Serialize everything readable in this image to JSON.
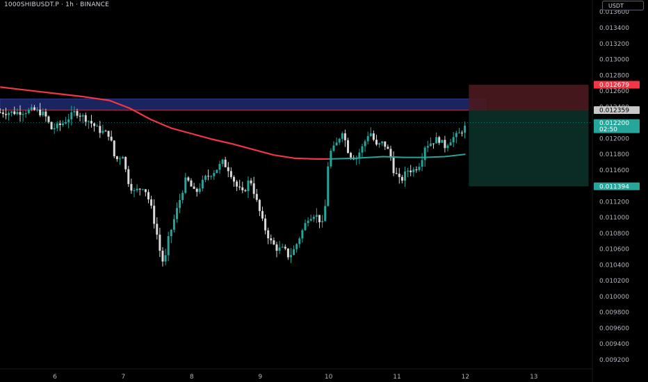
{
  "header": {
    "symbol": "1000SHIBUSDT.P · 1h · BINANCE",
    "currency": "USDT"
  },
  "colors": {
    "background": "#000000",
    "up": "#26a69a",
    "down": "#d9d9d9",
    "ma_line": "#f23645",
    "ma_line_recent": "#26a69a",
    "zone": "#1e2a6e",
    "stop_box": "#4a1a1f",
    "target_box": "#0b2e26",
    "axis_text": "#b2b5be"
  },
  "chart_data": {
    "type": "candlestick",
    "title": "",
    "xlabel": "",
    "ylabel": "",
    "ylim": [
      0.0091,
      0.0139
    ],
    "x_range": [
      5.2,
      14.4
    ],
    "x_ticks": [
      6,
      7,
      8,
      9,
      10,
      11,
      12,
      13
    ],
    "x_tick_labels": [
      "6",
      "7",
      "8",
      "9",
      "10",
      "11",
      "12",
      "13"
    ],
    "y_ticks": [
      0.0136,
      0.0134,
      0.0132,
      0.013,
      0.0128,
      0.0126,
      0.0124,
      0.0122,
      0.012,
      0.0118,
      0.0116,
      0.0114,
      0.0112,
      0.011,
      0.0108,
      0.0106,
      0.0104,
      0.0102,
      0.01,
      0.0098,
      0.0096,
      0.0094,
      0.0092
    ],
    "y_tick_labels": [
      "0.013600",
      "0.013400",
      "0.013200",
      "0.013000",
      "0.012800",
      "0.012600",
      "0.012400",
      "0.012200",
      "0.012000",
      "0.011800",
      "0.011600",
      "0.011400",
      "0.011200",
      "0.011000",
      "0.010800",
      "0.010600",
      "0.010400",
      "0.010200",
      "0.010000",
      "0.009800",
      "0.009600",
      "0.009400",
      "0.009200"
    ],
    "price_path": [
      [
        5.2,
        0.01233
      ],
      [
        5.45,
        0.01233
      ],
      [
        5.7,
        0.01236
      ],
      [
        5.85,
        0.0123
      ],
      [
        5.95,
        0.01212
      ],
      [
        6.1,
        0.01218
      ],
      [
        6.3,
        0.01234
      ],
      [
        6.5,
        0.01222
      ],
      [
        6.65,
        0.0121
      ],
      [
        6.8,
        0.01205
      ],
      [
        6.88,
        0.01172
      ],
      [
        7.0,
        0.0118
      ],
      [
        7.05,
        0.0115
      ],
      [
        7.15,
        0.01132
      ],
      [
        7.3,
        0.0114
      ],
      [
        7.4,
        0.01115
      ],
      [
        7.5,
        0.01075
      ],
      [
        7.55,
        0.0105
      ],
      [
        7.6,
        0.0104
      ],
      [
        7.65,
        0.0107
      ],
      [
        7.75,
        0.011
      ],
      [
        7.85,
        0.0113
      ],
      [
        7.92,
        0.0115
      ],
      [
        8.05,
        0.0113
      ],
      [
        8.2,
        0.0115
      ],
      [
        8.35,
        0.0116
      ],
      [
        8.45,
        0.0117
      ],
      [
        8.55,
        0.0116
      ],
      [
        8.65,
        0.0114
      ],
      [
        8.75,
        0.0113
      ],
      [
        8.85,
        0.0115
      ],
      [
        8.95,
        0.0112
      ],
      [
        9.05,
        0.0109
      ],
      [
        9.15,
        0.0107
      ],
      [
        9.25,
        0.0106
      ],
      [
        9.35,
        0.0106
      ],
      [
        9.42,
        0.0105
      ],
      [
        9.5,
        0.0106
      ],
      [
        9.6,
        0.0108
      ],
      [
        9.7,
        0.011
      ],
      [
        9.8,
        0.01105
      ],
      [
        9.92,
        0.0109
      ],
      [
        9.97,
        0.0113
      ],
      [
        10.0,
        0.0118
      ],
      [
        10.1,
        0.0119
      ],
      [
        10.2,
        0.0121
      ],
      [
        10.3,
        0.0118
      ],
      [
        10.4,
        0.01175
      ],
      [
        10.5,
        0.0119
      ],
      [
        10.6,
        0.0121
      ],
      [
        10.7,
        0.0119
      ],
      [
        10.8,
        0.01195
      ],
      [
        10.9,
        0.0118
      ],
      [
        10.95,
        0.0116
      ],
      [
        11.05,
        0.01145
      ],
      [
        11.15,
        0.0116
      ],
      [
        11.25,
        0.0116
      ],
      [
        11.35,
        0.0117
      ],
      [
        11.4,
        0.0119
      ],
      [
        11.5,
        0.01195
      ],
      [
        11.6,
        0.012
      ],
      [
        11.7,
        0.0119
      ],
      [
        11.8,
        0.012
      ],
      [
        11.9,
        0.01205
      ],
      [
        12.0,
        0.01215
      ],
      [
        12.03,
        0.0122
      ]
    ],
    "ma": [
      [
        5.2,
        0.01265
      ],
      [
        5.5,
        0.01262
      ],
      [
        6.0,
        0.01257
      ],
      [
        6.4,
        0.01253
      ],
      [
        6.8,
        0.01248
      ],
      [
        7.1,
        0.01238
      ],
      [
        7.4,
        0.01224
      ],
      [
        7.7,
        0.01213
      ],
      [
        8.0,
        0.01206
      ],
      [
        8.3,
        0.01199
      ],
      [
        8.6,
        0.01193
      ],
      [
        8.9,
        0.01186
      ],
      [
        9.2,
        0.01179
      ],
      [
        9.5,
        0.01175
      ],
      [
        9.8,
        0.01174
      ],
      [
        10.0,
        0.01174
      ]
    ],
    "ma_recent": [
      [
        10.0,
        0.01174
      ],
      [
        10.4,
        0.01175
      ],
      [
        10.8,
        0.01177
      ],
      [
        11.1,
        0.01176
      ],
      [
        11.4,
        0.01176
      ],
      [
        11.7,
        0.01177
      ],
      [
        12.0,
        0.0118
      ]
    ],
    "zone": {
      "low": 0.01236,
      "high": 0.0125,
      "x_end": 12.3
    },
    "position": {
      "entry": 0.012359,
      "stop": 0.012679,
      "target": 0.011394,
      "x_start": 12.05,
      "x_end": 13.8
    },
    "price_labels": [
      {
        "value": 0.012679,
        "text": "0.012679",
        "bg": "#f23645",
        "color": "#ffffff"
      },
      {
        "value": 0.012359,
        "text": "0.012359",
        "bg": "#c8c8c8",
        "color": "#000000"
      },
      {
        "value": 0.0122,
        "text": "0.012200",
        "sub": "02:50",
        "bg": "#26a69a",
        "color": "#ffffff"
      },
      {
        "value": 0.011394,
        "text": "0.011394",
        "bg": "#26a69a",
        "color": "#ffffff"
      }
    ]
  }
}
